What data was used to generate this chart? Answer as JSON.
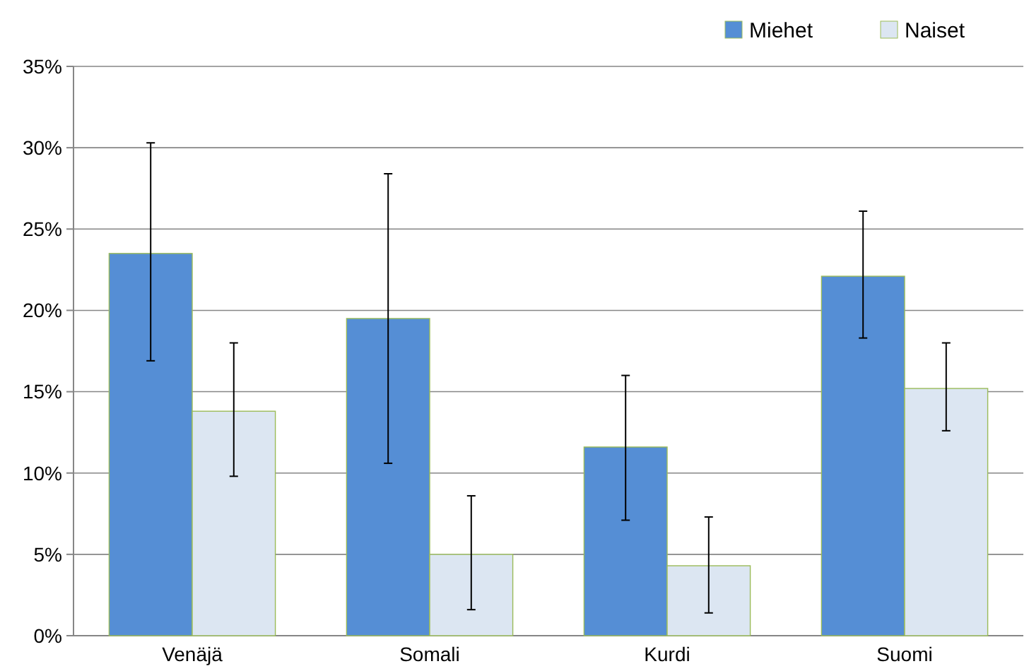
{
  "chart_data": {
    "type": "bar",
    "categories": [
      "Venäjä",
      "Somali",
      "Kurdi",
      "Suomi"
    ],
    "series": [
      {
        "name": "Miehet",
        "color": "#558ed5",
        "values": [
          23.5,
          19.5,
          11.6,
          22.1
        ],
        "errors": [
          [
            16.9,
            30.3
          ],
          [
            10.6,
            28.4
          ],
          [
            7.1,
            16.0
          ],
          [
            18.3,
            26.1
          ]
        ]
      },
      {
        "name": "Naiset",
        "color": "#dce6f2",
        "values": [
          13.8,
          5.0,
          4.3,
          15.2
        ],
        "errors": [
          [
            9.8,
            18.0
          ],
          [
            1.6,
            8.6
          ],
          [
            1.4,
            7.3
          ],
          [
            12.6,
            18.0
          ]
        ]
      }
    ],
    "ylim": [
      0,
      35
    ],
    "yticks": [
      {
        "value": 0,
        "label": "0%"
      },
      {
        "value": 5,
        "label": "5%"
      },
      {
        "value": 10,
        "label": "10%"
      },
      {
        "value": 15,
        "label": "15%"
      },
      {
        "value": 20,
        "label": "20%"
      },
      {
        "value": 25,
        "label": "25%"
      },
      {
        "value": 30,
        "label": "30%"
      },
      {
        "value": 35,
        "label": "35%"
      }
    ],
    "grid": "y",
    "legend": "top right"
  }
}
